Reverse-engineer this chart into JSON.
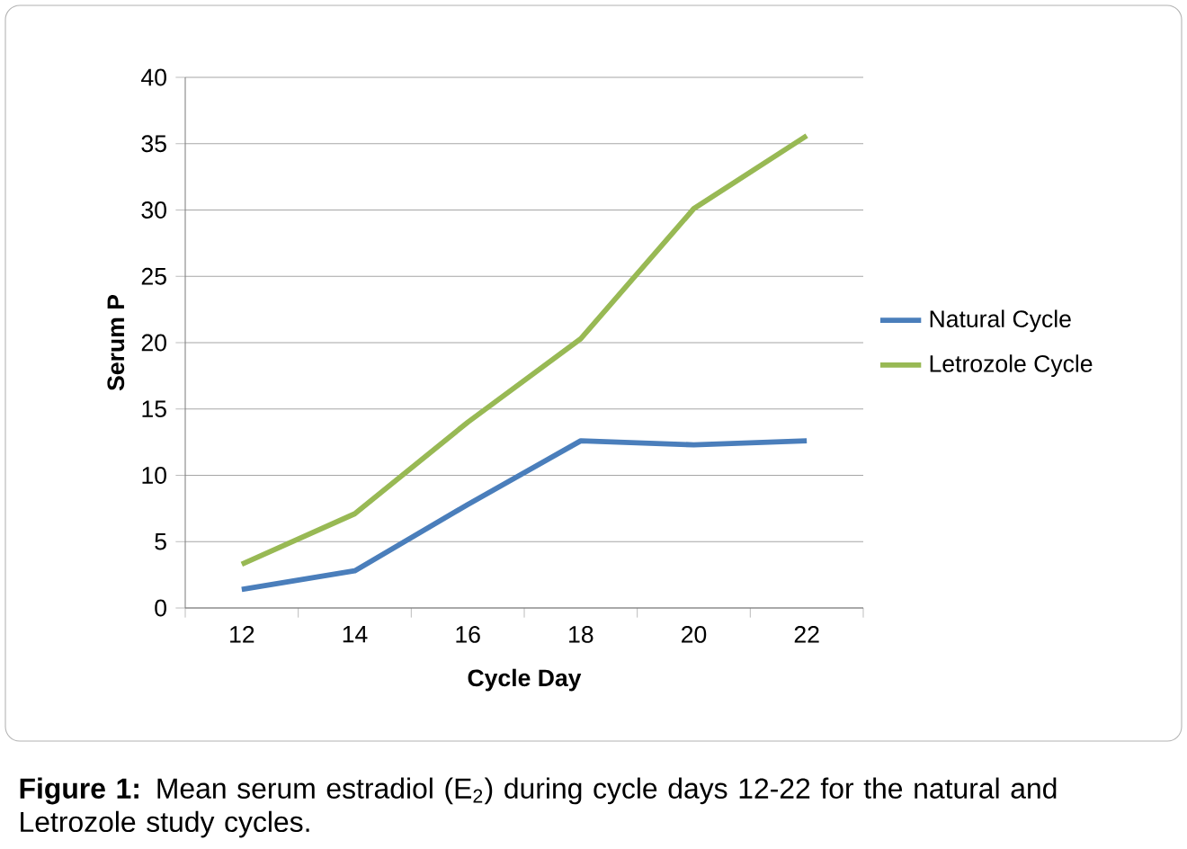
{
  "chart_data": {
    "type": "line",
    "xlabel": "Cycle Day",
    "ylabel": "Serum P",
    "categories": [
      "12",
      "14",
      "16",
      "18",
      "20",
      "22"
    ],
    "series": [
      {
        "name": "Natural Cycle",
        "color": "#4a7ebb",
        "values": [
          1.4,
          2.8,
          7.8,
          12.6,
          12.3,
          12.6
        ]
      },
      {
        "name": "Letrozole Cycle",
        "color": "#98b954",
        "values": [
          3.3,
          7.1,
          14,
          20.3,
          30.1,
          35.6
        ]
      }
    ],
    "ylim": [
      0,
      40
    ],
    "yticks": [
      0,
      5,
      10,
      15,
      20,
      25,
      30,
      35,
      40
    ],
    "grid": "y",
    "legend": "right",
    "marker": "none",
    "line_style": "solid",
    "annotations": [
      "**Figure 1:** Mean serum estradiol (E$_{2}$) during cycle days 12-22 for the natural and Letrozole study cycles."
    ]
  }
}
